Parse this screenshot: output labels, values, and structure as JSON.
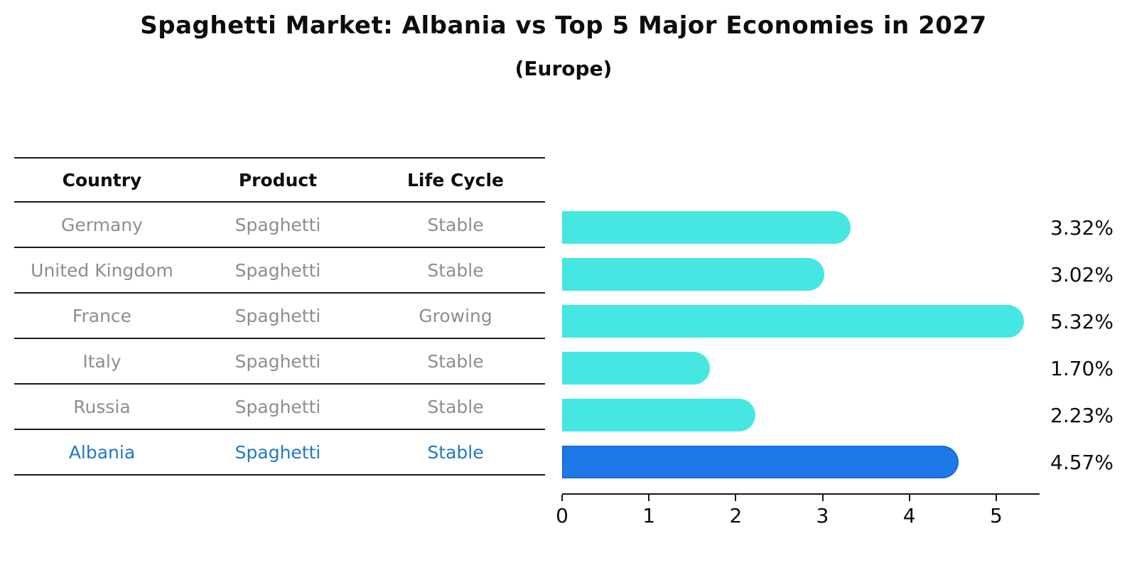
{
  "title": "Spaghetti Market: Albania vs Top 5 Major Economies in 2027",
  "subtitle": "(Europe)",
  "table": {
    "headers": {
      "country": "Country",
      "product": "Product",
      "life_cycle": "Life Cycle"
    },
    "rows": [
      {
        "country": "Germany",
        "product": "Spaghetti",
        "life_cycle": "Stable",
        "highlight": false
      },
      {
        "country": "United Kingdom",
        "product": "Spaghetti",
        "life_cycle": "Stable",
        "highlight": false
      },
      {
        "country": "France",
        "product": "Spaghetti",
        "life_cycle": "Growing",
        "highlight": false
      },
      {
        "country": "Italy",
        "product": "Spaghetti",
        "life_cycle": "Stable",
        "highlight": false
      },
      {
        "country": "Russia",
        "product": "Spaghetti",
        "life_cycle": "Stable",
        "highlight": false
      },
      {
        "country": "Albania",
        "product": "Spaghetti",
        "life_cycle": "Stable",
        "highlight": true
      }
    ]
  },
  "chart_data": {
    "type": "bar",
    "orientation": "horizontal",
    "title": "Spaghetti Market: Albania vs Top 5 Major Economies in 2027",
    "subtitle": "(Europe)",
    "categories": [
      "Germany",
      "United Kingdom",
      "France",
      "Italy",
      "Russia",
      "Albania"
    ],
    "values": [
      3.32,
      3.02,
      5.32,
      1.7,
      2.23,
      4.57
    ],
    "value_labels": [
      "3.32%",
      "3.02%",
      "5.32%",
      "1.70%",
      "2.23%",
      "4.57%"
    ],
    "highlight_index": 5,
    "xticks": [
      0,
      1,
      2,
      3,
      4,
      5
    ],
    "xlim": [
      0,
      5.5
    ],
    "grid": false,
    "legend": "none",
    "colors": {
      "bar": "#46e6e2",
      "highlight_bar": "#1e78e6",
      "highlight_edge": "#0c5ed2",
      "row_text": "#8e8e8e",
      "highlight_text": "#1f78c8",
      "axis_text": "#0d0d0d"
    }
  }
}
